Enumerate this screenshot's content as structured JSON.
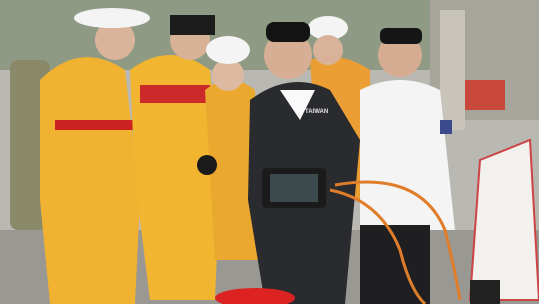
{
  "photo": {
    "jacket_text": "TAIWAN"
  }
}
